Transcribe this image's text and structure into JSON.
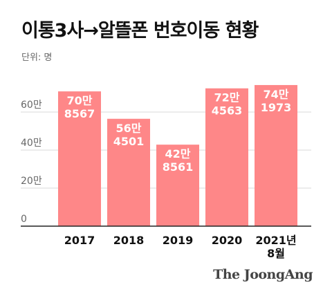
{
  "header": {
    "title": "이통3사→알뜰폰 번호이동 현황",
    "unit_label": "단위: 명"
  },
  "brand": "The JoongAng",
  "colors": {
    "bar": "#fe8788",
    "grid": "#d9d9d9",
    "axis": "#222222"
  },
  "chart_data": {
    "type": "bar",
    "categories": [
      "2017",
      "2018",
      "2019",
      "2020",
      "2021년 8월"
    ],
    "category_labels": [
      [
        "2017"
      ],
      [
        "2018"
      ],
      [
        "2019"
      ],
      [
        "2020"
      ],
      [
        "2021년",
        "8월"
      ]
    ],
    "values": [
      708567,
      564501,
      428561,
      724563,
      741973
    ],
    "data_labels": [
      [
        "70만",
        "8567"
      ],
      [
        "56만",
        "4501"
      ],
      [
        "42만",
        "8561"
      ],
      [
        "72만",
        "4563"
      ],
      [
        "74만",
        "1973"
      ]
    ],
    "y_ticks": [
      0,
      200000,
      400000,
      600000
    ],
    "y_tick_labels": [
      "0",
      "20만",
      "40만",
      "60만"
    ],
    "ylim": [
      0,
      750000
    ],
    "grid": true,
    "title": "이통3사→알뜰폰 번호이동 현황",
    "xlabel": "",
    "ylabel": ""
  }
}
